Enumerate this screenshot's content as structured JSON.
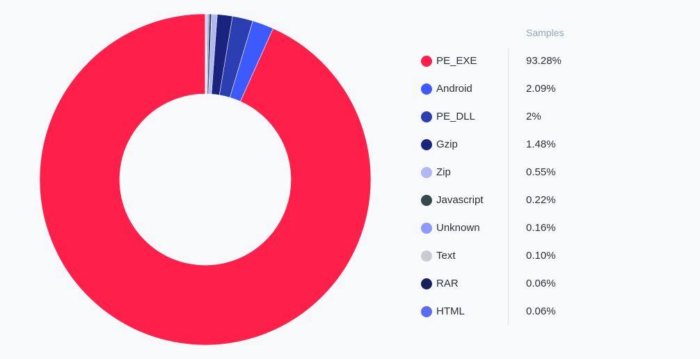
{
  "chart_data": {
    "type": "pie",
    "legend": {
      "header": "Samples",
      "placement": "right"
    },
    "categories": [
      "PE_EXE",
      "Android",
      "PE_DLL",
      "Gzip",
      "Zip",
      "Javascript",
      "Unknown",
      "Text",
      "RAR",
      "HTML"
    ],
    "values": [
      93.28,
      2.09,
      2,
      1.48,
      0.55,
      0.22,
      0.16,
      0.1,
      0.06,
      0.06
    ],
    "value_labels": [
      "93.28%",
      "2.09%",
      "2%",
      "1.48%",
      "0.55%",
      "0.22%",
      "0.16%",
      "0.10%",
      "0.06%",
      "0.06%"
    ],
    "colors": [
      "#ff1f4b",
      "#3d5afe",
      "#2a3eb1",
      "#1a237e",
      "#b0b8f5",
      "#37474f",
      "#8c9aff",
      "#c9cbd1",
      "#16205e",
      "#5c6cf0"
    ]
  }
}
